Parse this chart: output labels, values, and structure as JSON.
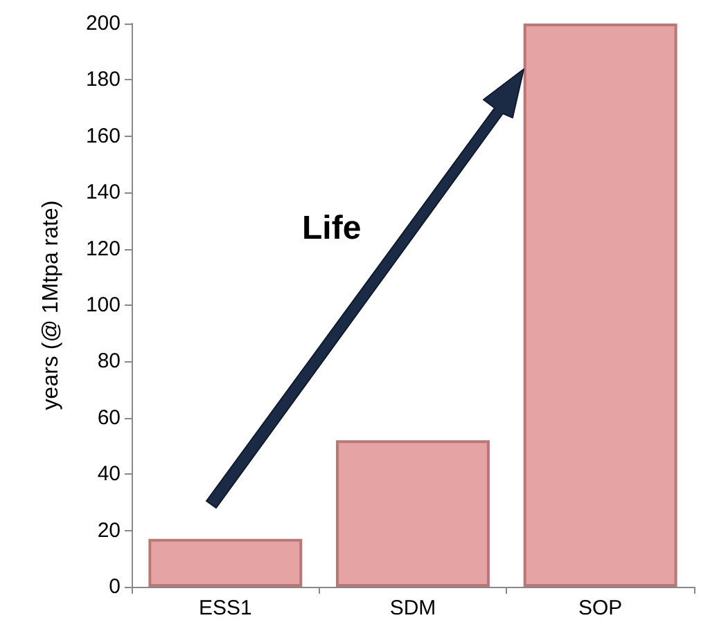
{
  "chart_data": {
    "type": "bar",
    "ylabel": "years (@ 1Mtpa rate)",
    "categories": [
      "ESS1",
      "SDM",
      "SOP"
    ],
    "values": [
      17,
      52,
      200
    ],
    "color": "#e6a3a3",
    "ylim": [
      0,
      200
    ],
    "yticks": [
      0,
      20,
      40,
      60,
      80,
      100,
      120,
      140,
      160,
      180,
      200
    ],
    "grid": false,
    "annotations": [
      "Life"
    ]
  }
}
